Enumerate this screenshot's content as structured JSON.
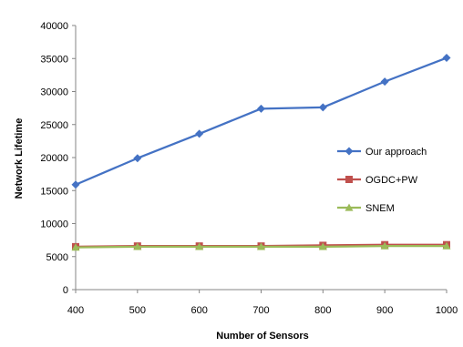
{
  "chart_data": {
    "type": "line",
    "title": "",
    "xlabel": "Number of Sensors",
    "ylabel": "Network Lifetime",
    "x": [
      400,
      500,
      600,
      700,
      800,
      900,
      1000
    ],
    "xlim": [
      400,
      1000
    ],
    "ylim": [
      0,
      40000
    ],
    "y_ticks": [
      0,
      5000,
      10000,
      15000,
      20000,
      25000,
      30000,
      35000,
      40000
    ],
    "grid": false,
    "legend_position": "right",
    "series": [
      {
        "name": "Our approach",
        "color": "#4472C4",
        "marker": "diamond",
        "values": [
          15900,
          19900,
          23600,
          27400,
          27600,
          31500,
          35100
        ]
      },
      {
        "name": "OGDC+PW",
        "color": "#C0504D",
        "marker": "square",
        "values": [
          6500,
          6600,
          6600,
          6600,
          6700,
          6800,
          6800
        ]
      },
      {
        "name": "SNEM",
        "color": "#9BBB59",
        "marker": "triangle",
        "values": [
          6400,
          6500,
          6500,
          6500,
          6500,
          6600,
          6600
        ]
      }
    ]
  }
}
